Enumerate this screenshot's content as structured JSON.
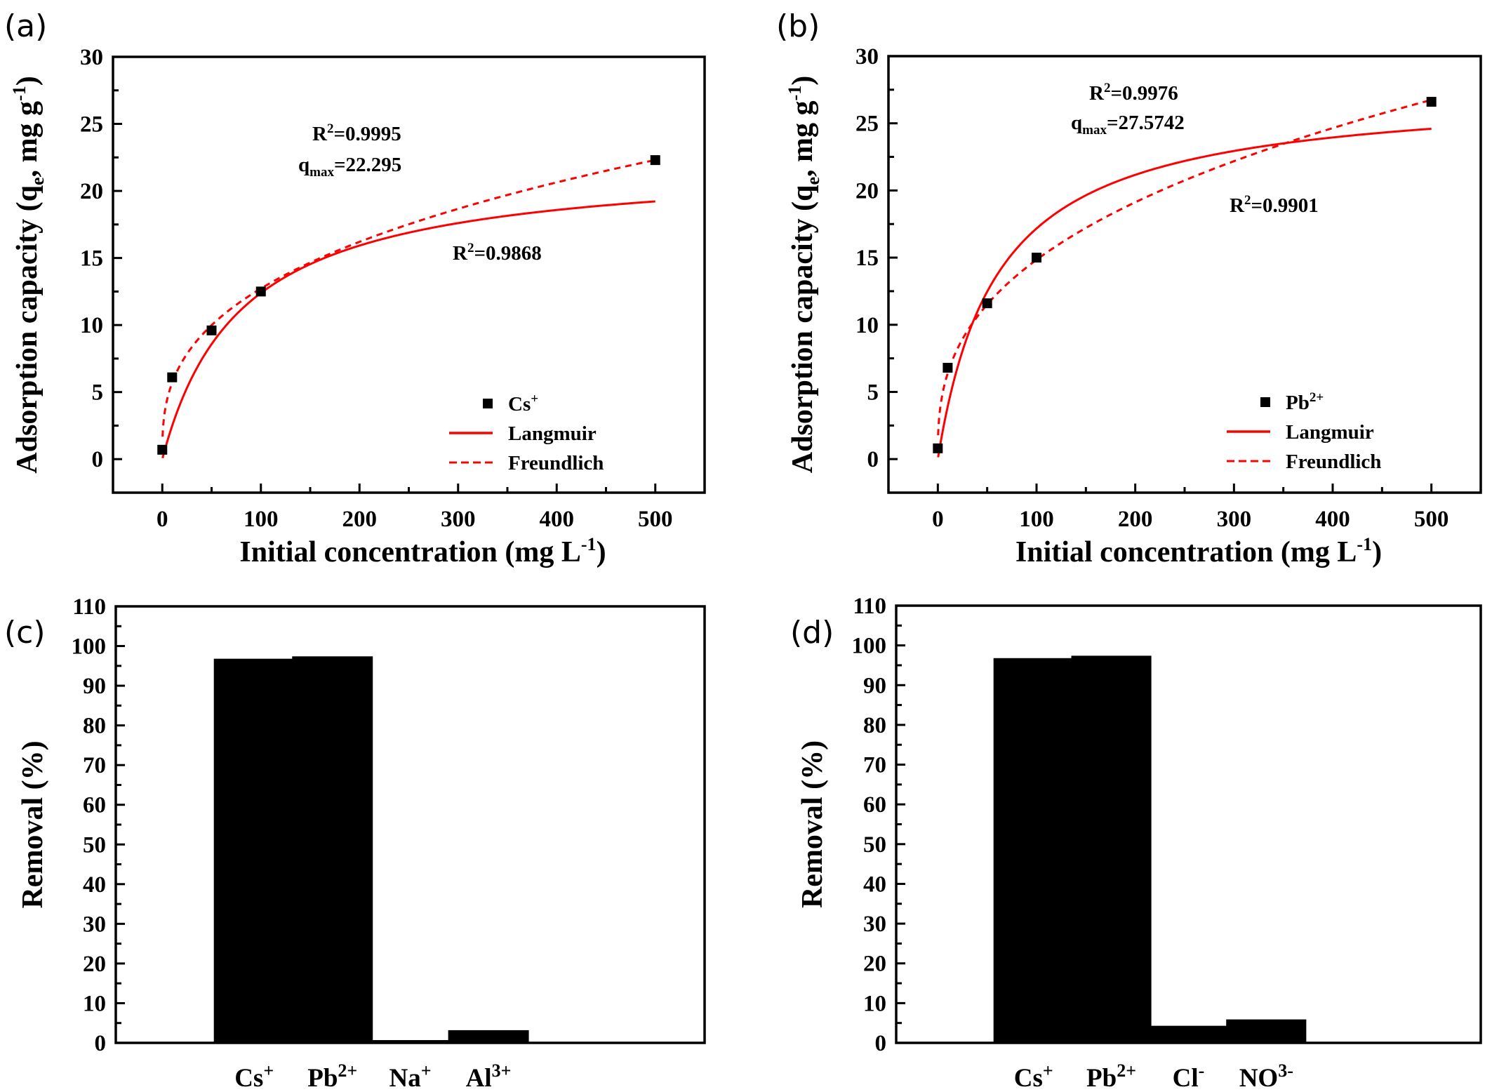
{
  "figure": {
    "panels": [
      "(a)",
      "(b)",
      "(c)",
      "(d)"
    ]
  },
  "colors": {
    "fit_line": "#ff0000",
    "marker": "#000000",
    "bar": "#000000",
    "axis": "#000000"
  },
  "chart_data": [
    {
      "id": "a",
      "panel_label": "(a)",
      "type": "scatter",
      "xlabel": "Initial concentration (mg L",
      "xlabel_sup": "-1",
      "xlabel_end": ")",
      "ylabel": "Adsorption capacity (q",
      "ylabel_sub": "e",
      "ylabel_mid": ", mg g",
      "ylabel_sup": "-1",
      "ylabel_end": ")",
      "xlim": [
        -50,
        550
      ],
      "ylim": [
        -2.5,
        30
      ],
      "xticks": [
        0,
        100,
        200,
        300,
        400,
        500
      ],
      "xminor": [
        50,
        150,
        250,
        350,
        450
      ],
      "yticks": [
        0,
        5,
        10,
        15,
        20,
        25,
        30
      ],
      "yminor": [
        2.5,
        7.5,
        12.5,
        17.5,
        22.5,
        27.5
      ],
      "grid": false,
      "legend_position": "bottom-right",
      "series": [
        {
          "name": "Cs",
          "name_sup": "+",
          "kind": "points",
          "x": [
            0,
            10,
            50,
            100,
            500
          ],
          "y": [
            0.7,
            6.1,
            9.6,
            12.5,
            22.3
          ]
        },
        {
          "name": "Langmuir",
          "kind": "line",
          "style": "solid",
          "model": "langmuir",
          "qmax": 22.295,
          "KL": 0.0125,
          "x_start": 0.3
        },
        {
          "name": "Freundlich",
          "kind": "line",
          "style": "dashed",
          "model": "freundlich",
          "KF": 2.55,
          "n_inv": 0.349,
          "x_start": 0.3
        }
      ],
      "annotations": [
        {
          "id": "langmuir_r2",
          "prefix": "R",
          "sup": "2",
          "text": "=0.9995"
        },
        {
          "id": "langmuir_qmax",
          "prefix": "q",
          "sub": "max",
          "text": "=22.295"
        },
        {
          "id": "freundlich_r2",
          "prefix": "R",
          "sup": "2",
          "text": "=0.9868"
        }
      ]
    },
    {
      "id": "b",
      "panel_label": "(b)",
      "type": "scatter",
      "xlabel": "Initial concentration (mg L",
      "xlabel_sup": "-1",
      "xlabel_end": ")",
      "ylabel": "Adsorption capacity (q",
      "ylabel_sub": "e",
      "ylabel_mid": ", mg g",
      "ylabel_sup": "-1",
      "ylabel_end": ")",
      "xlim": [
        -50,
        550
      ],
      "ylim": [
        -2.5,
        30
      ],
      "xticks": [
        0,
        100,
        200,
        300,
        400,
        500
      ],
      "xminor": [
        50,
        150,
        250,
        350,
        450
      ],
      "yticks": [
        0,
        5,
        10,
        15,
        20,
        25,
        30
      ],
      "yminor": [
        2.5,
        7.5,
        12.5,
        17.5,
        22.5,
        27.5
      ],
      "grid": false,
      "legend_position": "bottom-right",
      "series": [
        {
          "name": "Pb",
          "name_sup": "2+",
          "kind": "points",
          "x": [
            0,
            10,
            50,
            100,
            500
          ],
          "y": [
            0.8,
            6.8,
            11.6,
            15.0,
            26.6
          ]
        },
        {
          "name": "Langmuir",
          "kind": "line",
          "style": "solid",
          "model": "langmuir",
          "qmax": 27.5742,
          "KL": 0.0165,
          "x_start": 0.3
        },
        {
          "name": "Freundlich",
          "kind": "line",
          "style": "dashed",
          "model": "freundlich",
          "KF": 2.75,
          "n_inv": 0.366,
          "x_start": 0.3
        }
      ],
      "annotations": [
        {
          "id": "langmuir_r2",
          "prefix": "R",
          "sup": "2",
          "text": "=0.9976"
        },
        {
          "id": "langmuir_qmax",
          "prefix": "q",
          "sub": "max",
          "text": "=27.5742"
        },
        {
          "id": "freundlich_r2",
          "prefix": "R",
          "sup": "2",
          "text": "=0.9901"
        }
      ]
    },
    {
      "id": "c",
      "panel_label": "(c)",
      "type": "bar",
      "ylabel": "Removal (%)",
      "xlabel": "",
      "ylim": [
        0,
        110
      ],
      "yticks": [
        0,
        10,
        20,
        30,
        40,
        50,
        60,
        70,
        80,
        90,
        100,
        110
      ],
      "grid": false,
      "categories": [
        {
          "base": "Cs",
          "sup": "+"
        },
        {
          "base": "Pb",
          "sup": "2+"
        },
        {
          "base": "Na",
          "sup": "+"
        },
        {
          "base": "Al",
          "sup": "3+"
        }
      ],
      "values": [
        96.8,
        97.4,
        0.7,
        3.2
      ]
    },
    {
      "id": "d",
      "panel_label": "(d)",
      "type": "bar",
      "ylabel": "Removal (%)",
      "xlabel": "",
      "ylim": [
        0,
        110
      ],
      "yticks": [
        0,
        10,
        20,
        30,
        40,
        50,
        60,
        70,
        80,
        90,
        100,
        110
      ],
      "grid": false,
      "categories": [
        {
          "base": "Cs",
          "sup": "+"
        },
        {
          "base": "Pb",
          "sup": "2+"
        },
        {
          "base": "Cl",
          "sup": "-"
        },
        {
          "base": "NO",
          "sup": "3-"
        }
      ],
      "values": [
        96.8,
        97.4,
        4.3,
        5.9
      ]
    }
  ]
}
